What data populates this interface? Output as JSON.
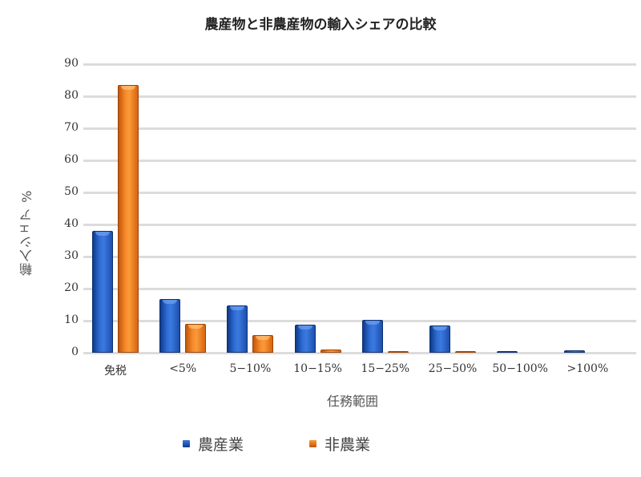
{
  "chart_data": {
    "type": "bar",
    "title": "農産物と非農産物の輸入シェアの比較",
    "xlabel": "任務範囲",
    "ylabel": "輸入シェア %",
    "categories": [
      "免税",
      "<5%",
      "5−10%",
      "10−15%",
      "15−25%",
      "25−50%",
      "50−100%",
      ">100%"
    ],
    "series": [
      {
        "name": "農産業",
        "color": "#2a5fc4",
        "values": [
          38,
          16.8,
          14.8,
          8.8,
          10.3,
          8.5,
          0.2,
          0.8
        ]
      },
      {
        "name": "非農業",
        "color": "#f0821e",
        "values": [
          83.5,
          9,
          5.5,
          1,
          0.3,
          0.2,
          0,
          0
        ]
      }
    ],
    "ylim": [
      0,
      90
    ],
    "yticks": [
      0,
      10,
      20,
      30,
      40,
      50,
      60,
      70,
      80,
      90
    ],
    "grid": true,
    "legend_position": "bottom"
  },
  "title": "農産物と非農産物の輸入シェアの比較",
  "axes": {
    "xlabel": "任務範囲",
    "ylabel": "輸入シェア %",
    "yticks": [
      "0",
      "10",
      "20",
      "30",
      "40",
      "50",
      "60",
      "70",
      "80",
      "90"
    ],
    "xticks": [
      "免税",
      "<5%",
      "5−10%",
      "10−15%",
      "15−25%",
      "25−50%",
      "50−100%",
      ">100%"
    ]
  },
  "legend": [
    {
      "label": "農産業",
      "color": "#1d4fae"
    },
    {
      "label": "非農業",
      "color": "#e0701a"
    }
  ]
}
